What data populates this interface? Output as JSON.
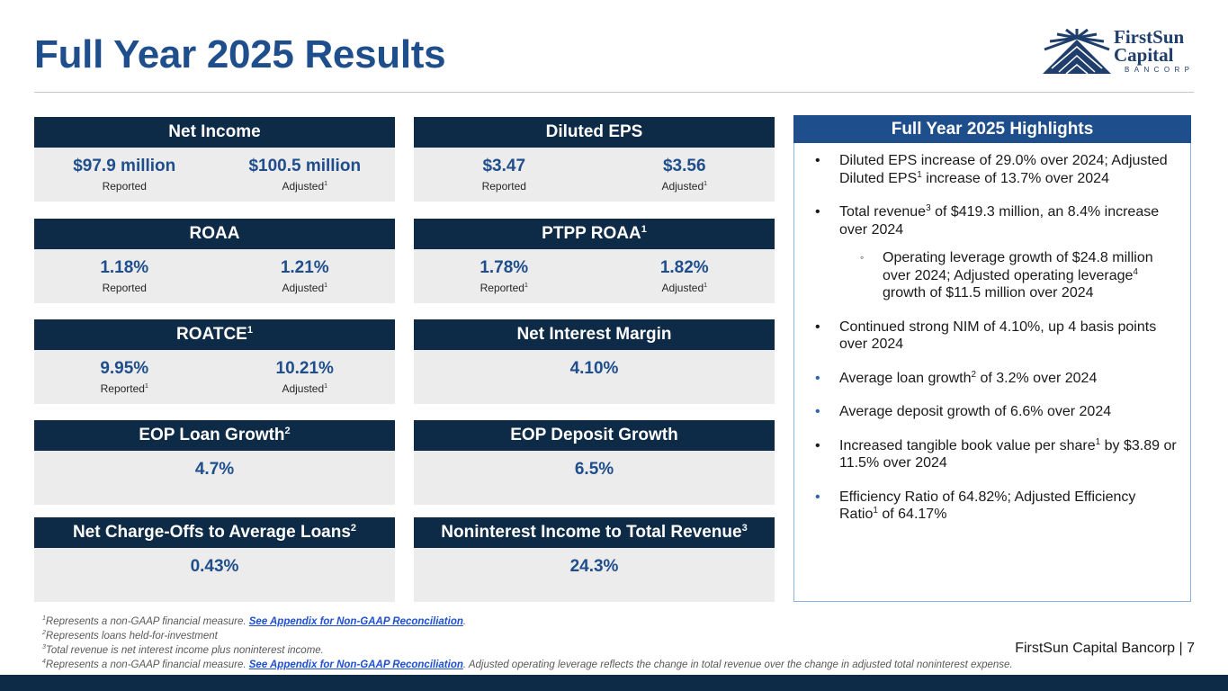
{
  "title": "Full Year 2025 Results",
  "logo": {
    "line1": "FirstSun",
    "line2": "Capital",
    "line3": "BANCORP"
  },
  "cards": {
    "net_income": {
      "title": "Net Income",
      "left_value": "$97.9 million",
      "left_label": "Reported",
      "right_value": "$100.5 million",
      "right_label": "Adjusted",
      "right_sup": "1"
    },
    "diluted_eps": {
      "title": "Diluted EPS",
      "left_value": "$3.47",
      "left_label": "Reported",
      "right_value": "$3.56",
      "right_label": "Adjusted",
      "right_sup": "1"
    },
    "roaa": {
      "title": "ROAA",
      "left_value": "1.18%",
      "left_label": "Reported",
      "right_value": "1.21%",
      "right_label": "Adjusted",
      "right_sup": "1"
    },
    "ptpp_roaa": {
      "title": "PTPP ROAA",
      "title_sup": "1",
      "left_value": "1.78%",
      "left_label": "Reported",
      "left_sup": "1",
      "right_value": "1.82%",
      "right_label": "Adjusted",
      "right_sup": "1"
    },
    "roatce": {
      "title": "ROATCE",
      "title_sup": "1",
      "left_value": "9.95%",
      "left_label": "Reported",
      "left_sup": "1",
      "right_value": "10.21%",
      "right_label": "Adjusted",
      "right_sup": "1"
    },
    "nim": {
      "title": "Net Interest Margin",
      "value": "4.10%"
    },
    "eop_loan": {
      "title": "EOP Loan Growth",
      "title_sup": "2",
      "value": "4.7%"
    },
    "eop_deposit": {
      "title": "EOP Deposit Growth",
      "value": "6.5%"
    },
    "nco": {
      "title": "Net Charge-Offs to Average Loans",
      "title_sup": "2",
      "value": "0.43%"
    },
    "nonint": {
      "title": "Noninterest Income to Total Revenue",
      "title_sup": "3",
      "value": "24.3%"
    }
  },
  "highlights": {
    "title": "Full Year 2025 Highlights",
    "i1_a": "Diluted EPS increase of 29.0% over 2024; Adjusted Diluted EPS",
    "i1_sup": "1",
    "i1_b": " increase of 13.7% over 2024",
    "i2_a": "Total revenue",
    "i2_sup": "3",
    "i2_b": " of $419.3 million, an 8.4% increase over 2024",
    "i3_a": "Operating leverage growth of $24.8 million over 2024; Adjusted operating leverage",
    "i3_sup": "4",
    "i3_b": " growth of $11.5 million over 2024",
    "i4": "Continued strong NIM of 4.10%, up 4 basis points over 2024",
    "i5_a": "Average loan growth",
    "i5_sup": "2",
    "i5_b": " of 3.2% over 2024",
    "i6": "Average deposit growth of 6.6% over 2024",
    "i7_a": "Increased tangible book value per share",
    "i7_sup": "1",
    "i7_b": " by $3.89 or 11.5% over 2024",
    "i8_a": "Efficiency Ratio of 64.82%; Adjusted Efficiency Ratio",
    "i8_sup": "1",
    "i8_b": " of 64.17%"
  },
  "footnotes": {
    "n1_sup": "1",
    "n1_text": "Represents a non-GAAP financial measure. ",
    "n1_link": "See Appendix for Non-GAAP Reconciliation",
    "n1_end": ".",
    "n2_sup": "2",
    "n2_text": "Represents loans held-for-investment",
    "n3_sup": "3",
    "n3_text": "Total revenue is net interest income plus noninterest income.",
    "n4_sup": "4",
    "n4_text": "Represents a non-GAAP financial measure. ",
    "n4_link": "See Appendix for Non-GAAP Reconciliation",
    "n4_end": ". Adjusted operating leverage reflects the change in total revenue over the change in adjusted total noninterest expense."
  },
  "footer": {
    "brand": "FirstSun Capital Bancorp  |  7"
  },
  "colors": {
    "navy": "#0d2a47",
    "blue": "#1f4e8c",
    "panel": "#ececec",
    "link": "#1f4fd1"
  }
}
